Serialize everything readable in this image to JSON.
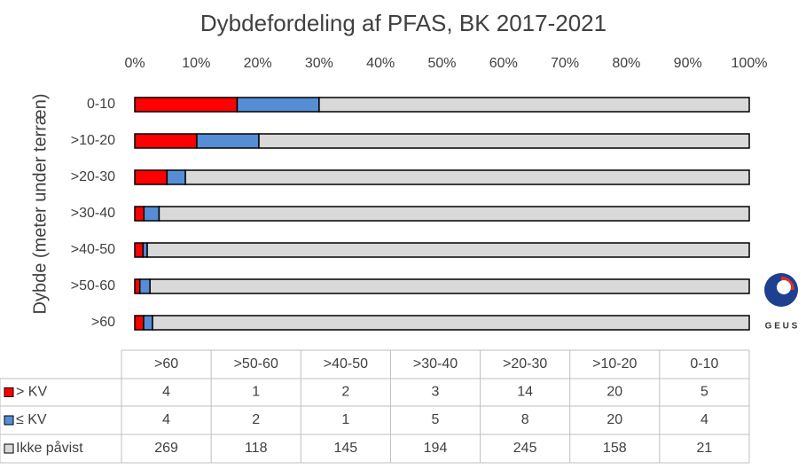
{
  "chart_data": {
    "type": "stacked_percent_bar",
    "orientation": "horizontal",
    "title": "Dybdefordeling af PFAS, BK 2017-2021",
    "y_label": "Dybde (meter under terræn)",
    "categories": [
      ">60",
      ">50-60",
      ">40-50",
      ">30-40",
      ">20-30",
      ">10-20",
      "0-10"
    ],
    "series": [
      {
        "name": "> KV",
        "color": "#ff0000",
        "values": [
          4,
          1,
          2,
          3,
          14,
          20,
          5
        ]
      },
      {
        "name": "≤ KV",
        "color": "#558ed5",
        "values": [
          4,
          2,
          1,
          5,
          8,
          20,
          4
        ]
      },
      {
        "name": "Ikke påvist",
        "color": "#d9d9d9",
        "values": [
          269,
          118,
          145,
          194,
          245,
          158,
          21
        ]
      }
    ],
    "xlim": [
      0,
      100
    ],
    "xticks": [
      {
        "value": 0,
        "label": "0%"
      },
      {
        "value": 10,
        "label": "10%"
      },
      {
        "value": 20,
        "label": "20%"
      },
      {
        "value": 30,
        "label": "30%"
      },
      {
        "value": 40,
        "label": "40%"
      },
      {
        "value": 50,
        "label": "50%"
      },
      {
        "value": 60,
        "label": "60%"
      },
      {
        "value": 70,
        "label": "70%"
      },
      {
        "value": 80,
        "label": "80%"
      },
      {
        "value": 90,
        "label": "90%"
      },
      {
        "value": 100,
        "label": "100%"
      }
    ],
    "data_table": true,
    "logo_text": "G E U S"
  }
}
